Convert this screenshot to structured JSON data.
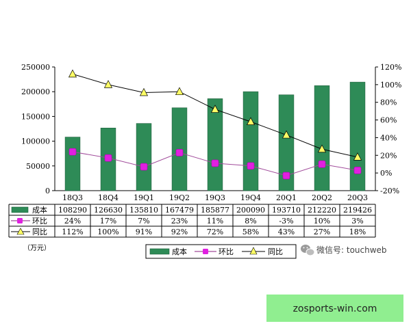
{
  "chart_data": {
    "type": "bar",
    "categories": [
      "18Q3",
      "18Q4",
      "19Q1",
      "19Q2",
      "19Q3",
      "19Q4",
      "20Q1",
      "20Q2",
      "20Q3"
    ],
    "series": [
      {
        "name": "成本",
        "kind": "bar",
        "axis": "left",
        "color": "#2e8b57",
        "values": [
          108290,
          126630,
          135810,
          167479,
          185877,
          200090,
          193710,
          212220,
          219426
        ]
      },
      {
        "name": "环比",
        "kind": "line",
        "axis": "right",
        "color": "#a04a9a",
        "marker_color": "#e020e0",
        "values": [
          24,
          17,
          7,
          23,
          11,
          8,
          -3,
          10,
          3
        ]
      },
      {
        "name": "同比",
        "kind": "line",
        "axis": "right",
        "color": "#000000",
        "marker_color": "#ffff66",
        "values": [
          112,
          100,
          91,
          92,
          72,
          58,
          43,
          27,
          18
        ]
      }
    ],
    "table": {
      "rows": [
        {
          "name": "成本",
          "cells": [
            "108290",
            "126630",
            "135810",
            "167479",
            "185877",
            "200090",
            "193710",
            "212220",
            "219426"
          ]
        },
        {
          "name": "环比",
          "cells": [
            "24%",
            "17%",
            "7%",
            "23%",
            "11%",
            "8%",
            "-3%",
            "10%",
            "3%"
          ]
        },
        {
          "name": "同比",
          "cells": [
            "112%",
            "100%",
            "91%",
            "92%",
            "72%",
            "58%",
            "43%",
            "27%",
            "18%"
          ]
        }
      ]
    },
    "y_left": {
      "min": 0,
      "max": 250000,
      "step": 50000,
      "ticks": [
        "0",
        "50000",
        "100000",
        "150000",
        "200000",
        "250000"
      ]
    },
    "y_right": {
      "min": -20,
      "max": 120,
      "step": 20,
      "ticks": [
        "-20%",
        "0%",
        "20%",
        "40%",
        "60%",
        "80%",
        "100%",
        "120%"
      ]
    },
    "unit_label": "（万元）",
    "legend": {
      "position": "bottom",
      "items": [
        "成本",
        "环比",
        "同比"
      ]
    },
    "grid": false
  },
  "watermark": {
    "text": "微信号: touchweb",
    "icon": "wechat-icon"
  },
  "banner": {
    "text": "zosports-win.com",
    "color": "#90ee90"
  }
}
